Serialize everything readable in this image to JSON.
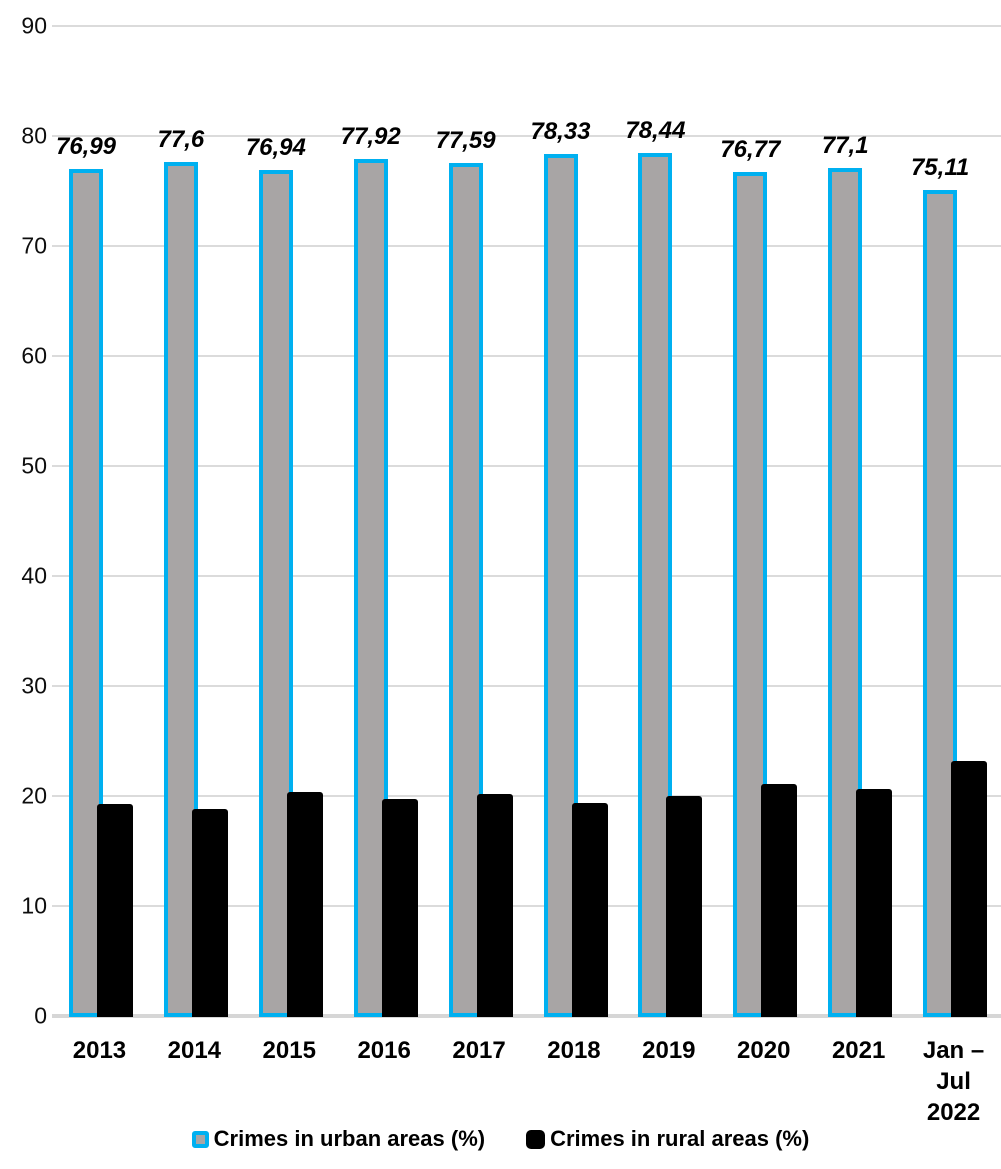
{
  "chart_data": {
    "type": "bar",
    "categories": [
      "2013",
      "2014",
      "2015",
      "2016",
      "2017",
      "2018",
      "2019",
      "2020",
      "2021",
      "Jan – Jul\n2022"
    ],
    "series": [
      {
        "name": "Crimes in urban areas (%)",
        "values": [
          76.99,
          77.6,
          76.94,
          77.92,
          77.59,
          78.33,
          78.44,
          76.77,
          77.1,
          75.11
        ],
        "data_labels": [
          "76,99",
          "77,6",
          "76,94",
          "77,92",
          "77,59",
          "78,33",
          "78,44",
          "76,77",
          "77,1",
          "75,11"
        ],
        "fill_color": "#a8a5a5",
        "border_color": "#00b0f0"
      },
      {
        "name": "Crimes in rural areas (%)",
        "values": [
          19.3,
          18.8,
          20.4,
          19.7,
          20.2,
          19.4,
          20.0,
          21.1,
          20.6,
          23.2
        ],
        "data_labels": [],
        "fill_color": "#000000",
        "border_color": "#000000"
      }
    ],
    "title": "",
    "xlabel": "",
    "ylabel": "",
    "ylim": [
      0,
      90
    ],
    "ytick_values": [
      0,
      10,
      20,
      30,
      40,
      50,
      60,
      70,
      80,
      90
    ],
    "ytick_labels": [
      "0",
      "10",
      "20",
      "30",
      "40",
      "50",
      "60",
      "70",
      "80",
      "90"
    ],
    "grid": "horizontal",
    "gridline_color": "#dbdbdb",
    "legend_position": "bottom-center",
    "decimal_separator": ","
  },
  "legend": {
    "urban_label": "Crimes in urban areas (%)",
    "rural_label": "Crimes in rural areas (%)"
  },
  "colors": {
    "urban_fill": "#a8a5a5",
    "urban_border": "#00b0f0",
    "rural_fill": "#000000",
    "gridline": "#dbdbdb",
    "axis_line": "#d6d6d6",
    "text": "#000000"
  }
}
